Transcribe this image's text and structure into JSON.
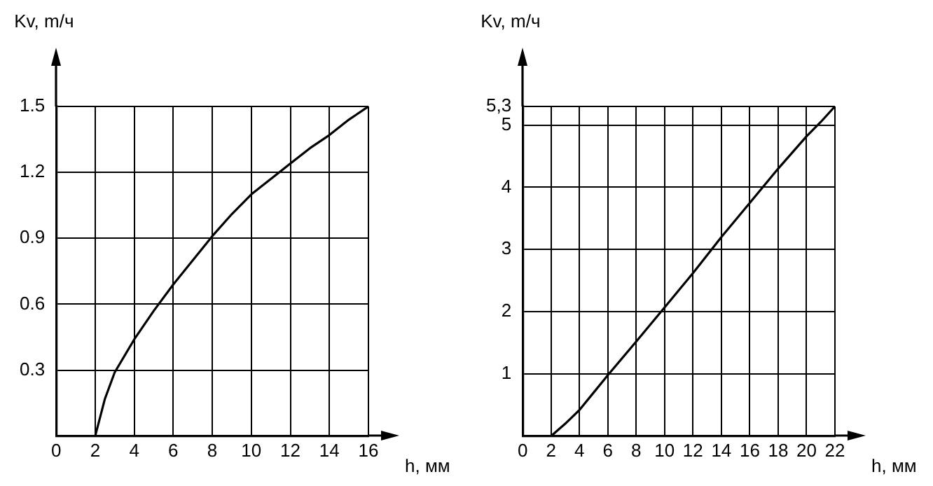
{
  "chart_data": [
    {
      "type": "line",
      "xlabel": "h, мм",
      "ylabel": "Kv, m/ч",
      "color": "#000000",
      "marker": "none",
      "line_style": "solid",
      "grid": true,
      "x": [
        2,
        2.5,
        3,
        4,
        5,
        6,
        7,
        8,
        9,
        10,
        11,
        12,
        13,
        14,
        15,
        16
      ],
      "values": [
        0,
        0.17,
        0.29,
        0.44,
        0.57,
        0.69,
        0.8,
        0.91,
        1.01,
        1.1,
        1.17,
        1.24,
        1.31,
        1.37,
        1.44,
        1.5
      ],
      "xlim": [
        0,
        16
      ],
      "xticks": [
        0,
        2,
        4,
        6,
        8,
        10,
        12,
        14,
        16
      ],
      "ylim": [
        0,
        1.5
      ],
      "yticks": [
        0.3,
        0.6,
        0.9,
        1.2,
        1.5
      ]
    },
    {
      "type": "line",
      "xlabel": "h, мм",
      "ylabel": "Kv, m/ч",
      "color": "#000000",
      "marker": "none",
      "line_style": "solid",
      "grid": true,
      "x": [
        2,
        3,
        4,
        5,
        6,
        8,
        10,
        12,
        14,
        16,
        18,
        20,
        21,
        22
      ],
      "values": [
        0,
        0.2,
        0.42,
        0.7,
        0.98,
        1.52,
        2.07,
        2.62,
        3.2,
        3.75,
        4.3,
        4.82,
        5.05,
        5.3
      ],
      "xlim": [
        0,
        22
      ],
      "xticks": [
        0,
        2,
        4,
        6,
        8,
        10,
        12,
        14,
        16,
        18,
        20,
        22
      ],
      "ylim": [
        0,
        5.3
      ],
      "yticks": [
        1,
        2,
        3,
        4,
        5,
        {
          "value": 5.3,
          "label": "5,3"
        }
      ]
    }
  ]
}
